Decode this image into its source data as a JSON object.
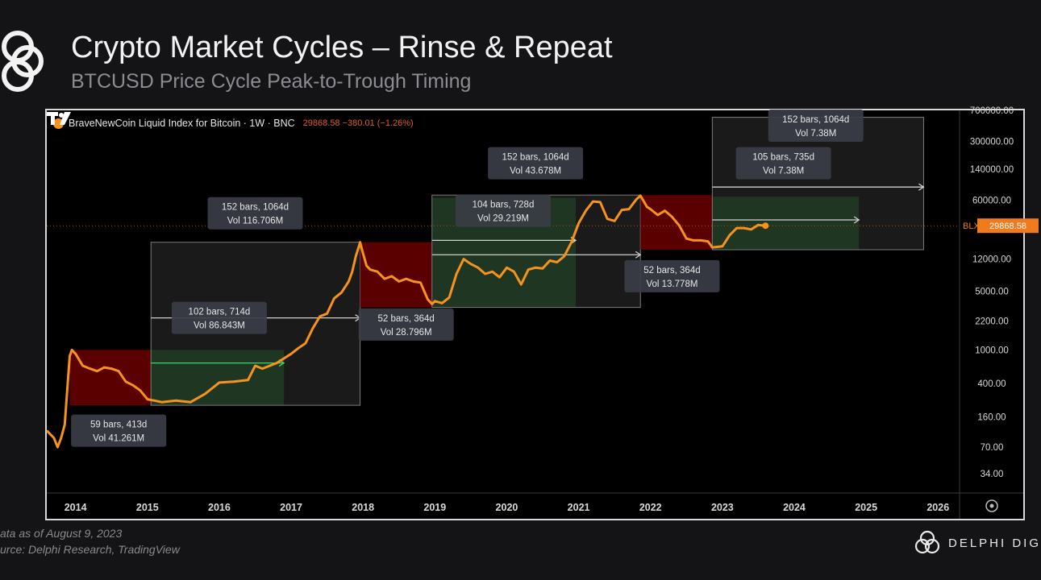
{
  "header": {
    "title": "Crypto Market Cycles – Rinse & Repeat",
    "subtitle": "BTCUSD Price Cycle Peak-to-Trough Timing"
  },
  "legend": {
    "symbol": "BraveNewCoin Liquid Index for Bitcoin · 1W · BNC",
    "values": "29868.58 −380.01 (−1.26%)"
  },
  "footer": {
    "line1": "ata as of August 9, 2023",
    "line2": "urce: Delphi Research, TradingView"
  },
  "brand": {
    "name": "DELPHI DIG"
  },
  "colors": {
    "price_line": "#f7931a",
    "down_zone": "#6b0000",
    "up_zone": "#0f4a18",
    "range_box": "#2f2f2f",
    "price_tag": "#f07b1e"
  },
  "icons": [
    "delphi-logo-icon",
    "tradingview-logo-icon",
    "settings-icon",
    "bitcoin-dot-icon"
  ],
  "chart_data": {
    "type": "line",
    "scale": "log",
    "ylim": [
      20,
      700000
    ],
    "xlim": [
      2013.6,
      2026.3
    ],
    "x_ticks": [
      "2014",
      "2015",
      "2016",
      "2017",
      "2018",
      "2019",
      "2020",
      "2021",
      "2022",
      "2023",
      "2024",
      "2025",
      "2026"
    ],
    "y_ticks": [
      "700000.00",
      "300000.00",
      "140000.00",
      "60000.00",
      "12000.00",
      "5000.00",
      "2200.00",
      "1000.00",
      "400.00",
      "160.00",
      "70.00",
      "34.00"
    ],
    "price_tag": {
      "label": "BLX",
      "value": "29868.58",
      "y": 29868.58
    },
    "series": [
      {
        "x": [
          2013.6,
          2013.7,
          2013.75,
          2013.8,
          2013.85,
          2013.88,
          2013.92,
          2013.95,
          2014.0,
          2014.1,
          2014.2,
          2014.3,
          2014.4,
          2014.5,
          2014.6,
          2014.7,
          2014.8,
          2014.9,
          2015.0,
          2015.1,
          2015.2,
          2015.4,
          2015.6,
          2015.8,
          2015.9,
          2016.0,
          2016.2,
          2016.4,
          2016.5,
          2016.6,
          2016.8,
          2017.0,
          2017.1,
          2017.2,
          2017.3,
          2017.4,
          2017.5,
          2017.6,
          2017.7,
          2017.8,
          2017.85,
          2017.9,
          2017.96,
          2018.0,
          2018.05,
          2018.1,
          2018.2,
          2018.3,
          2018.4,
          2018.5,
          2018.6,
          2018.7,
          2018.8,
          2018.9,
          2018.96,
          2019.0,
          2019.1,
          2019.2,
          2019.3,
          2019.4,
          2019.5,
          2019.6,
          2019.7,
          2019.8,
          2019.9,
          2020.0,
          2020.1,
          2020.2,
          2020.3,
          2020.4,
          2020.5,
          2020.6,
          2020.7,
          2020.8,
          2020.9,
          2021.0,
          2021.1,
          2021.2,
          2021.3,
          2021.4,
          2021.5,
          2021.6,
          2021.7,
          2021.8,
          2021.86,
          2021.95,
          2022.0,
          2022.1,
          2022.2,
          2022.3,
          2022.4,
          2022.5,
          2022.6,
          2022.7,
          2022.8,
          2022.86,
          2022.95,
          2023.0,
          2023.1,
          2023.2,
          2023.3,
          2023.4,
          2023.5,
          2023.6
        ],
        "y": [
          110,
          90,
          70,
          90,
          130,
          300,
          850,
          1000,
          900,
          650,
          600,
          560,
          620,
          600,
          560,
          420,
          380,
          330,
          260,
          250,
          240,
          250,
          240,
          300,
          350,
          410,
          420,
          440,
          650,
          600,
          700,
          900,
          1050,
          1200,
          1800,
          2500,
          2700,
          4100,
          4800,
          6500,
          8500,
          13000,
          19000,
          14000,
          10000,
          9000,
          8500,
          7000,
          7500,
          6500,
          7000,
          6500,
          6300,
          4000,
          3500,
          3800,
          3600,
          4200,
          8000,
          12000,
          10500,
          9500,
          8000,
          8500,
          7300,
          9500,
          8500,
          6000,
          9000,
          9500,
          9300,
          11500,
          11000,
          13000,
          19000,
          32000,
          45000,
          58000,
          57000,
          36000,
          34000,
          46000,
          47000,
          61000,
          68000,
          50000,
          47000,
          40000,
          45000,
          38000,
          30000,
          21000,
          20000,
          20000,
          19500,
          16500,
          16800,
          17000,
          23000,
          28000,
          28000,
          27000,
          30500,
          29868.58
        ]
      }
    ],
    "zones": [
      {
        "kind": "down",
        "x": [
          2013.92,
          2015.05
        ],
        "y": [
          220,
          1000
        ]
      },
      {
        "kind": "up",
        "x": [
          2015.05,
          2016.9
        ],
        "y": [
          220,
          1000
        ]
      },
      {
        "kind": "box",
        "x": [
          2015.05,
          2017.96
        ],
        "y": [
          220,
          19000
        ]
      },
      {
        "kind": "down",
        "x": [
          2017.96,
          2018.96
        ],
        "y": [
          3200,
          19000
        ]
      },
      {
        "kind": "up",
        "x": [
          2018.96,
          2020.96
        ],
        "y": [
          3200,
          64000
        ]
      },
      {
        "kind": "box",
        "x": [
          2018.96,
          2021.86
        ],
        "y": [
          3200,
          69000
        ]
      },
      {
        "kind": "down",
        "x": [
          2021.86,
          2022.86
        ],
        "y": [
          15500,
          69000
        ]
      },
      {
        "kind": "up",
        "x": [
          2022.86,
          2024.9
        ],
        "y": [
          15500,
          66000
        ]
      },
      {
        "kind": "box",
        "x": [
          2022.86,
          2025.8
        ],
        "y": [
          15500,
          580000
        ]
      }
    ],
    "ranges": [
      {
        "x": [
          2015.05,
          2016.9
        ],
        "y": 700
      },
      {
        "x": [
          2015.05,
          2017.96
        ],
        "y": 2400
      },
      {
        "x": [
          2018.96,
          2020.96
        ],
        "y": 20000
      },
      {
        "x": [
          2018.96,
          2021.86
        ],
        "y": 13500
      },
      {
        "x": [
          2022.86,
          2024.9
        ],
        "y": 35000
      },
      {
        "x": [
          2022.86,
          2025.8
        ],
        "y": 86000
      }
    ],
    "annotations": [
      {
        "line1": "59 bars, 413d",
        "line2": "Vol 41.261M",
        "x": 2014.6,
        "y": 110
      },
      {
        "line1": "102 bars, 714d",
        "line2": "Vol 86.843M",
        "x": 2016.0,
        "y": 2400
      },
      {
        "line1": "152 bars, 1064d",
        "line2": "Vol 116.706M",
        "x": 2016.5,
        "y": 42000
      },
      {
        "line1": "52 bars, 364d",
        "line2": "Vol 28.796M",
        "x": 2018.6,
        "y": 2000
      },
      {
        "line1": "104 bars, 728d",
        "line2": "Vol 29.219M",
        "x": 2019.95,
        "y": 45000
      },
      {
        "line1": "152 bars, 1064d",
        "line2": "Vol 43.678M",
        "x": 2020.4,
        "y": 165000
      },
      {
        "line1": "52 bars, 364d",
        "line2": "Vol 13.778M",
        "x": 2022.3,
        "y": 7500
      },
      {
        "line1": "105 bars, 735d",
        "line2": "Vol 7.38M",
        "x": 2023.85,
        "y": 165000
      },
      {
        "line1": "152 bars, 1064d",
        "line2": "Vol 7.38M",
        "x": 2024.3,
        "y": 460000
      }
    ]
  }
}
